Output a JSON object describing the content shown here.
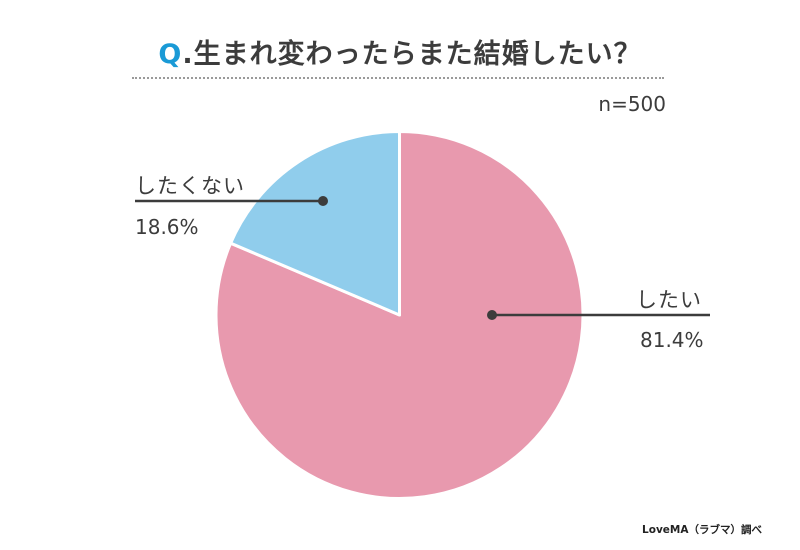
{
  "header": {
    "q_prefix": "Q",
    "question": ".生まれ変わったらまた結婚したい？",
    "sample_size": "n=500"
  },
  "labels": {
    "no": {
      "label": "したくない",
      "percent": "18.6%"
    },
    "yes": {
      "label": "したい",
      "percent": "81.4%"
    }
  },
  "source": "LoveMA（ラブマ）調べ",
  "colors": {
    "yes": "#e899ae",
    "no": "#90cdec",
    "accent": "#1a9ad6",
    "text": "#3c3c3c"
  },
  "chart_data": {
    "type": "pie",
    "title": "Q.生まれ変わったらまた結婚したい？",
    "subtitle": "n=500",
    "categories": [
      "したい",
      "したくない"
    ],
    "values": [
      81.4,
      18.6
    ],
    "unit": "%",
    "colors": [
      "#e899ae",
      "#90cdec"
    ],
    "start_angle": "12 o'clock, clockwise",
    "legend": "callout labels (したくない left, したい right)",
    "source": "LoveMA（ラブマ）調べ"
  }
}
